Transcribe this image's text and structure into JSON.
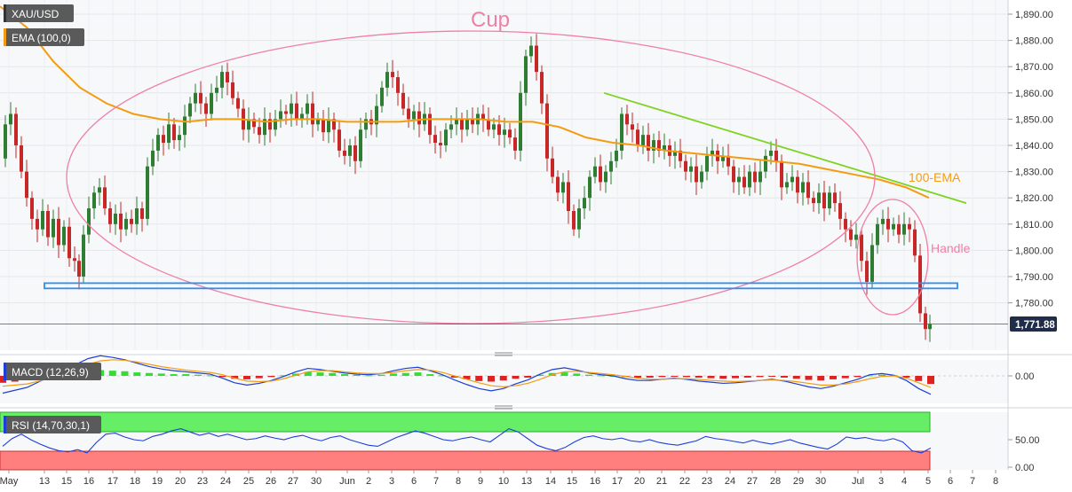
{
  "symbol": "XAU/USD",
  "ema_label": "EMA (100,0)",
  "macd_label": "MACD (12,26,9)",
  "rsi_label": "RSI (14,70,30,1)",
  "current_price": "1,771.88",
  "annotations": {
    "cup": "Cup",
    "handle": "Handle",
    "ema": "100-EMA"
  },
  "colors": {
    "up": "#2e7d32",
    "down": "#c62828",
    "ema": "#f39c12",
    "trendline": "#7ed321",
    "pattern": "#f07fa5",
    "support": "#2f8ef0",
    "macd_line": "#1e3fd6",
    "signal_line": "#f39c12",
    "rsi_line": "#1e3fd6",
    "rsi_overbought": "#66ee66",
    "rsi_oversold": "#ff7f7f"
  },
  "chart_data": [
    {
      "type": "candlestick",
      "title": "XAU/USD",
      "ylim": [
        1765,
        1895
      ],
      "y_ticks": [
        "1,780.00",
        "1,790.00",
        "1,800.00",
        "1,810.00",
        "1,820.00",
        "1,830.00",
        "1,840.00",
        "1,850.00",
        "1,860.00",
        "1,870.00",
        "1,880.00",
        "1,890.00"
      ],
      "y_tick_values": [
        1780,
        1790,
        1800,
        1810,
        1820,
        1830,
        1840,
        1850,
        1860,
        1870,
        1880,
        1890
      ],
      "x_ticks": [
        "May",
        "13",
        "15",
        "16",
        "17",
        "18",
        "19",
        "20",
        "23",
        "24",
        "25",
        "26",
        "27",
        "30",
        "Jun",
        "2",
        "3",
        "6",
        "7",
        "8",
        "9",
        "10",
        "13",
        "14",
        "15",
        "16",
        "17",
        "20",
        "21",
        "22",
        "23",
        "24",
        "27",
        "28",
        "29",
        "30",
        "Jul",
        "3",
        "4",
        "5",
        "6",
        "7",
        "8"
      ],
      "close_path": [
        [
          0,
          1835
        ],
        [
          6,
          1848
        ],
        [
          12,
          1852
        ],
        [
          18,
          1840
        ],
        [
          24,
          1830
        ],
        [
          30,
          1820
        ],
        [
          36,
          1812
        ],
        [
          42,
          1808
        ],
        [
          48,
          1815
        ],
        [
          54,
          1805
        ],
        [
          60,
          1812
        ],
        [
          66,
          1802
        ],
        [
          72,
          1809
        ],
        [
          78,
          1797
        ],
        [
          84,
          1796
        ],
        [
          88,
          1790
        ],
        [
          94,
          1806
        ],
        [
          100,
          1816
        ],
        [
          106,
          1822
        ],
        [
          112,
          1824
        ],
        [
          118,
          1816
        ],
        [
          124,
          1810
        ],
        [
          130,
          1814
        ],
        [
          136,
          1808
        ],
        [
          142,
          1812
        ],
        [
          148,
          1810
        ],
        [
          154,
          1816
        ],
        [
          160,
          1812
        ],
        [
          166,
          1832
        ],
        [
          172,
          1838
        ],
        [
          178,
          1844
        ],
        [
          184,
          1841
        ],
        [
          190,
          1848
        ],
        [
          196,
          1842
        ],
        [
          202,
          1844
        ],
        [
          208,
          1851
        ],
        [
          214,
          1856
        ],
        [
          220,
          1860
        ],
        [
          226,
          1856
        ],
        [
          232,
          1852
        ],
        [
          238,
          1860
        ],
        [
          244,
          1862
        ],
        [
          250,
          1868
        ],
        [
          256,
          1864
        ],
        [
          262,
          1858
        ],
        [
          268,
          1854
        ],
        [
          274,
          1846
        ],
        [
          280,
          1850
        ],
        [
          286,
          1847
        ],
        [
          292,
          1844
        ],
        [
          298,
          1850
        ],
        [
          304,
          1846
        ],
        [
          310,
          1850
        ],
        [
          316,
          1853
        ],
        [
          322,
          1852
        ],
        [
          328,
          1856
        ],
        [
          334,
          1850
        ],
        [
          340,
          1852
        ],
        [
          346,
          1856
        ],
        [
          352,
          1848
        ],
        [
          358,
          1850
        ],
        [
          364,
          1845
        ],
        [
          370,
          1850
        ],
        [
          376,
          1846
        ],
        [
          382,
          1838
        ],
        [
          388,
          1836
        ],
        [
          394,
          1840
        ],
        [
          400,
          1834
        ],
        [
          406,
          1846
        ],
        [
          412,
          1850
        ],
        [
          418,
          1848
        ],
        [
          424,
          1855
        ],
        [
          430,
          1862
        ],
        [
          436,
          1868
        ],
        [
          442,
          1866
        ],
        [
          448,
          1860
        ],
        [
          454,
          1854
        ],
        [
          460,
          1850
        ],
        [
          466,
          1853
        ],
        [
          472,
          1848
        ],
        [
          478,
          1852
        ],
        [
          484,
          1844
        ],
        [
          490,
          1841
        ],
        [
          496,
          1840
        ],
        [
          502,
          1846
        ],
        [
          508,
          1848
        ],
        [
          514,
          1850
        ],
        [
          520,
          1846
        ],
        [
          526,
          1850
        ],
        [
          532,
          1848
        ],
        [
          538,
          1852
        ],
        [
          544,
          1850
        ],
        [
          550,
          1846
        ],
        [
          556,
          1848
        ],
        [
          562,
          1844
        ],
        [
          568,
          1846
        ],
        [
          574,
          1843
        ],
        [
          580,
          1838
        ],
        [
          586,
          1860
        ],
        [
          592,
          1874
        ],
        [
          598,
          1878
        ],
        [
          604,
          1868
        ],
        [
          610,
          1856
        ],
        [
          616,
          1835
        ],
        [
          622,
          1828
        ],
        [
          628,
          1822
        ],
        [
          634,
          1826
        ],
        [
          640,
          1815
        ],
        [
          646,
          1808
        ],
        [
          652,
          1816
        ],
        [
          658,
          1820
        ],
        [
          664,
          1828
        ],
        [
          670,
          1832
        ],
        [
          676,
          1826
        ],
        [
          682,
          1830
        ],
        [
          688,
          1834
        ],
        [
          694,
          1838
        ],
        [
          700,
          1852
        ],
        [
          706,
          1848
        ],
        [
          712,
          1846
        ],
        [
          718,
          1840
        ],
        [
          724,
          1844
        ],
        [
          730,
          1838
        ],
        [
          736,
          1842
        ],
        [
          742,
          1838
        ],
        [
          748,
          1840
        ],
        [
          754,
          1836
        ],
        [
          760,
          1838
        ],
        [
          766,
          1834
        ],
        [
          772,
          1830
        ],
        [
          778,
          1832
        ],
        [
          784,
          1826
        ],
        [
          790,
          1830
        ],
        [
          796,
          1836
        ],
        [
          802,
          1838
        ],
        [
          808,
          1834
        ],
        [
          814,
          1836
        ],
        [
          820,
          1832
        ],
        [
          826,
          1826
        ],
        [
          832,
          1828
        ],
        [
          838,
          1824
        ],
        [
          844,
          1830
        ],
        [
          850,
          1826
        ],
        [
          856,
          1830
        ],
        [
          862,
          1836
        ],
        [
          868,
          1838
        ],
        [
          874,
          1834
        ],
        [
          880,
          1824
        ],
        [
          886,
          1826
        ],
        [
          892,
          1828
        ],
        [
          898,
          1822
        ],
        [
          904,
          1826
        ],
        [
          910,
          1820
        ],
        [
          916,
          1818
        ],
        [
          922,
          1822
        ],
        [
          928,
          1816
        ],
        [
          934,
          1822
        ],
        [
          940,
          1818
        ],
        [
          946,
          1812
        ],
        [
          952,
          1808
        ],
        [
          958,
          1804
        ],
        [
          964,
          1806
        ],
        [
          970,
          1796
        ],
        [
          976,
          1788
        ],
        [
          982,
          1802
        ],
        [
          988,
          1810
        ],
        [
          994,
          1812
        ],
        [
          1000,
          1808
        ],
        [
          1006,
          1810
        ],
        [
          1012,
          1806
        ],
        [
          1018,
          1810
        ],
        [
          1024,
          1808
        ],
        [
          1030,
          1798
        ],
        [
          1036,
          1776
        ],
        [
          1042,
          1770
        ],
        [
          1046,
          1772
        ]
      ],
      "ema_100": [
        [
          0,
          1893
        ],
        [
          30,
          1885
        ],
        [
          60,
          1872
        ],
        [
          90,
          1862
        ],
        [
          120,
          1856
        ],
        [
          150,
          1852
        ],
        [
          180,
          1850
        ],
        [
          210,
          1849
        ],
        [
          240,
          1850
        ],
        [
          270,
          1850
        ],
        [
          300,
          1849
        ],
        [
          330,
          1850
        ],
        [
          360,
          1850
        ],
        [
          390,
          1849
        ],
        [
          420,
          1849
        ],
        [
          450,
          1849
        ],
        [
          480,
          1850
        ],
        [
          510,
          1850
        ],
        [
          540,
          1850
        ],
        [
          570,
          1849
        ],
        [
          600,
          1849
        ],
        [
          630,
          1847
        ],
        [
          660,
          1843
        ],
        [
          690,
          1841
        ],
        [
          720,
          1840
        ],
        [
          750,
          1838
        ],
        [
          780,
          1837
        ],
        [
          810,
          1836
        ],
        [
          840,
          1835
        ],
        [
          870,
          1834
        ],
        [
          900,
          1833
        ],
        [
          930,
          1831
        ],
        [
          960,
          1829
        ],
        [
          990,
          1827
        ],
        [
          1020,
          1824
        ],
        [
          1046,
          1820
        ]
      ],
      "trendline": [
        [
          680,
          1860
        ],
        [
          1088,
          1818
        ]
      ],
      "support_zone": [
        1785.5,
        1787.5
      ],
      "last_price": 1771.88
    },
    {
      "type": "bar+line",
      "title": "MACD (12,26,9)",
      "y_ticks": [
        "0.00"
      ],
      "histogram": [
        -1.2,
        -1.0,
        -0.6,
        -0.2,
        0.1,
        0.4,
        0.7,
        0.9,
        1.0,
        0.9,
        0.8,
        0.6,
        0.5,
        0.4,
        0.3,
        0.3,
        0.2,
        0.1,
        -0.2,
        -0.5,
        -0.6,
        -0.4,
        -0.2,
        0.1,
        0.4,
        0.7,
        0.6,
        0.5,
        0.3,
        0.2,
        0.1,
        0.2,
        0.4,
        0.5,
        0.6,
        0.3,
        0.1,
        -0.3,
        -0.6,
        -0.9,
        -1.0,
        -0.8,
        -0.5,
        -0.3,
        0.2,
        0.5,
        0.6,
        0.4,
        0.2,
        0.1,
        0.0,
        -0.2,
        -0.3,
        -0.3,
        -0.2,
        -0.1,
        -0.2,
        -0.3,
        -0.4,
        -0.5,
        -0.4,
        -0.3,
        -0.2,
        -0.1,
        -0.3,
        -0.5,
        -0.7,
        -0.8,
        -0.6,
        -0.4,
        -0.2,
        0.1,
        0.2,
        0.1,
        -0.3,
        -0.9,
        -1.4
      ],
      "macd": [
        -3,
        -2.5,
        -2,
        -1,
        0,
        1,
        2,
        3,
        3.5,
        3.2,
        2.8,
        2.2,
        1.6,
        1.2,
        0.9,
        0.7,
        0.5,
        0.3,
        -0.4,
        -1.2,
        -1.6,
        -1.3,
        -0.8,
        -0.1,
        0.7,
        1.3,
        1.1,
        0.8,
        0.5,
        0.3,
        0.2,
        0.4,
        0.9,
        1.3,
        1.5,
        0.9,
        0.2,
        -0.7,
        -1.5,
        -2.2,
        -2.6,
        -2.2,
        -1.4,
        -0.7,
        0.3,
        1.1,
        1.4,
        1.0,
        0.5,
        0.2,
        0.0,
        -0.5,
        -0.8,
        -0.8,
        -0.6,
        -0.4,
        -0.6,
        -0.9,
        -1.1,
        -1.3,
        -1.2,
        -1.0,
        -0.8,
        -0.6,
        -0.9,
        -1.4,
        -1.9,
        -2.2,
        -1.8,
        -1.2,
        -0.6,
        0.2,
        0.4,
        0.1,
        -0.8,
        -2.2,
        -3.2
      ],
      "signal": [
        -1.8,
        -1.6,
        -1.4,
        -0.9,
        -0.3,
        0.4,
        1.2,
        2.0,
        2.6,
        2.8,
        2.7,
        2.4,
        2.0,
        1.6,
        1.3,
        1.0,
        0.8,
        0.6,
        0.2,
        -0.4,
        -0.9,
        -1.0,
        -0.9,
        -0.5,
        0.1,
        0.7,
        0.9,
        0.9,
        0.7,
        0.5,
        0.4,
        0.4,
        0.6,
        0.9,
        1.1,
        1.0,
        0.6,
        0.0,
        -0.6,
        -1.2,
        -1.7,
        -1.9,
        -1.7,
        -1.3,
        -0.6,
        0.2,
        0.7,
        0.8,
        0.6,
        0.4,
        0.2,
        -0.1,
        -0.4,
        -0.6,
        -0.6,
        -0.5,
        -0.5,
        -0.6,
        -0.8,
        -0.9,
        -1.0,
        -0.9,
        -0.8,
        -0.7,
        -0.8,
        -1.0,
        -1.3,
        -1.6,
        -1.6,
        -1.4,
        -1.0,
        -0.5,
        -0.1,
        0.0,
        -0.4,
        -1.2,
        -2.0
      ]
    },
    {
      "type": "line",
      "title": "RSI (14,70,30,1)",
      "y_ticks": [
        "0.00",
        "50.00"
      ],
      "ylim": [
        0,
        100
      ],
      "overbought": 70,
      "oversold": 30,
      "values": [
        38,
        52,
        60,
        50,
        42,
        35,
        30,
        28,
        32,
        26,
        45,
        60,
        62,
        55,
        50,
        48,
        56,
        60,
        66,
        70,
        64,
        58,
        62,
        56,
        60,
        55,
        50,
        52,
        57,
        53,
        50,
        55,
        58,
        52,
        48,
        54,
        57,
        50,
        45,
        40,
        38,
        46,
        54,
        60,
        66,
        62,
        56,
        50,
        48,
        52,
        55,
        50,
        46,
        58,
        70,
        64,
        52,
        40,
        34,
        30,
        36,
        46,
        54,
        57,
        52,
        50,
        53,
        48,
        46,
        50,
        45,
        42,
        40,
        44,
        48,
        56,
        52,
        50,
        47,
        44,
        49,
        45,
        42,
        46,
        50,
        44,
        40,
        36,
        33,
        42,
        55,
        52,
        54,
        50,
        48,
        52,
        46,
        30,
        26,
        35
      ]
    }
  ]
}
